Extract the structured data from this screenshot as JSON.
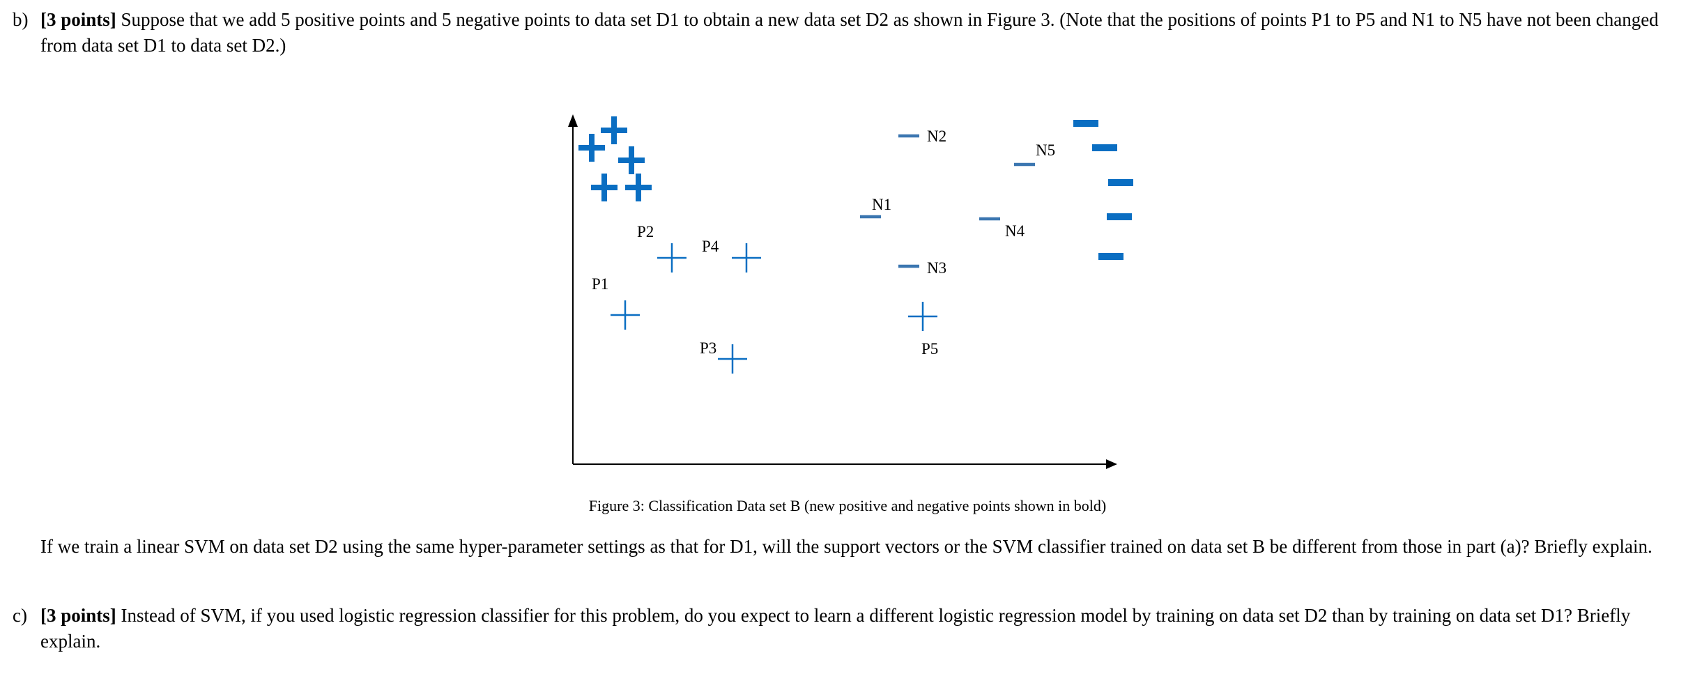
{
  "question_b": {
    "label": "b)",
    "points": "[3 points]",
    "text": " Suppose that we add 5 positive points and 5 negative points to data set D1 to obtain a new data set D2 as shown in Figure 3. (Note that the positions of points P1 to P5 and N1 to N5 have not been changed from data set D1 to data set D2.)"
  },
  "figure": {
    "caption": "Figure 3: Classification Data set B (new positive and negative points shown in bold)",
    "colors": {
      "marker": "#0a6ec2",
      "axis": "#000000"
    },
    "labels": [
      "P1",
      "P2",
      "P3",
      "P4",
      "P5",
      "N1",
      "N2",
      "N3",
      "N4",
      "N5"
    ]
  },
  "followup_b": "If we train a linear SVM on data set D2 using the same hyper-parameter settings as that for D1, will the support vectors or the SVM classifier trained on data set B be different from those in part (a)? Briefly explain.",
  "question_c": {
    "label": "c)",
    "points": "[3 points]",
    "text": " Instead of SVM, if you used logistic regression classifier for this problem, do you expect to learn a different logistic regression model by training on data set D2 than by training on data set D1? Briefly explain."
  }
}
